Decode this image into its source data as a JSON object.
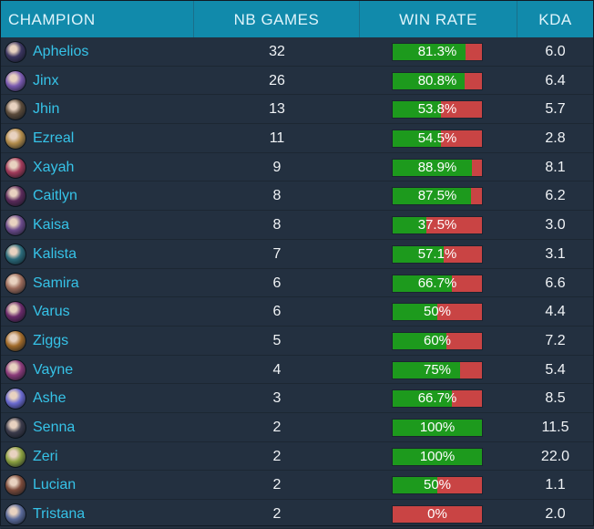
{
  "columns": {
    "champion": "CHAMPION",
    "games": "NB GAMES",
    "winrate": "WIN RATE",
    "kda": "KDA"
  },
  "rows": [
    {
      "champion": "Aphelios",
      "games": "32",
      "winrate_label": "81.3%",
      "winrate": 81.3,
      "kda": "6.0",
      "avatar_color": "#3b3560",
      "avatar_icon": "aphelios-portrait"
    },
    {
      "champion": "Jinx",
      "games": "26",
      "winrate_label": "80.8%",
      "winrate": 80.8,
      "kda": "6.4",
      "avatar_color": "#7a5ab0",
      "avatar_icon": "jinx-portrait"
    },
    {
      "champion": "Jhin",
      "games": "13",
      "winrate_label": "53.8%",
      "winrate": 53.8,
      "kda": "5.7",
      "avatar_color": "#5a4a3a",
      "avatar_icon": "jhin-portrait"
    },
    {
      "champion": "Ezreal",
      "games": "11",
      "winrate_label": "54.5%",
      "winrate": 54.5,
      "kda": "2.8",
      "avatar_color": "#b08a4a",
      "avatar_icon": "ezreal-portrait"
    },
    {
      "champion": "Xayah",
      "games": "9",
      "winrate_label": "88.9%",
      "winrate": 88.9,
      "kda": "8.1",
      "avatar_color": "#a03a5a",
      "avatar_icon": "xayah-portrait"
    },
    {
      "champion": "Caitlyn",
      "games": "8",
      "winrate_label": "87.5%",
      "winrate": 87.5,
      "kda": "6.2",
      "avatar_color": "#5a2a5a",
      "avatar_icon": "caitlyn-portrait"
    },
    {
      "champion": "Kaisa",
      "games": "8",
      "winrate_label": "37.5%",
      "winrate": 37.5,
      "kda": "3.0",
      "avatar_color": "#6a4a8a",
      "avatar_icon": "kaisa-portrait"
    },
    {
      "champion": "Kalista",
      "games": "7",
      "winrate_label": "57.1%",
      "winrate": 57.1,
      "kda": "3.1",
      "avatar_color": "#2a6a7a",
      "avatar_icon": "kalista-portrait"
    },
    {
      "champion": "Samira",
      "games": "6",
      "winrate_label": "66.7%",
      "winrate": 66.7,
      "kda": "6.6",
      "avatar_color": "#9a6a5a",
      "avatar_icon": "samira-portrait"
    },
    {
      "champion": "Varus",
      "games": "6",
      "winrate_label": "50%",
      "winrate": 50,
      "kda": "4.4",
      "avatar_color": "#6a2a6a",
      "avatar_icon": "varus-portrait"
    },
    {
      "champion": "Ziggs",
      "games": "5",
      "winrate_label": "60%",
      "winrate": 60,
      "kda": "7.2",
      "avatar_color": "#a06a2a",
      "avatar_icon": "ziggs-portrait"
    },
    {
      "champion": "Vayne",
      "games": "4",
      "winrate_label": "75%",
      "winrate": 75,
      "kda": "5.4",
      "avatar_color": "#8a3a7a",
      "avatar_icon": "vayne-portrait"
    },
    {
      "champion": "Ashe",
      "games": "3",
      "winrate_label": "66.7%",
      "winrate": 66.7,
      "kda": "8.5",
      "avatar_color": "#6a6ad0",
      "avatar_icon": "ashe-portrait"
    },
    {
      "champion": "Senna",
      "games": "2",
      "winrate_label": "100%",
      "winrate": 100,
      "kda": "11.5",
      "avatar_color": "#3a3a4a",
      "avatar_icon": "senna-portrait"
    },
    {
      "champion": "Zeri",
      "games": "2",
      "winrate_label": "100%",
      "winrate": 100,
      "kda": "22.0",
      "avatar_color": "#8aa040",
      "avatar_icon": "zeri-portrait"
    },
    {
      "champion": "Lucian",
      "games": "2",
      "winrate_label": "50%",
      "winrate": 50,
      "kda": "1.1",
      "avatar_color": "#7a4a3a",
      "avatar_icon": "lucian-portrait"
    },
    {
      "champion": "Tristana",
      "games": "2",
      "winrate_label": "0%",
      "winrate": 0,
      "kda": "2.0",
      "avatar_color": "#5a6a9a",
      "avatar_icon": "tristana-portrait"
    }
  ],
  "colors": {
    "header_bg": "#118aab",
    "row_bg": "#233040",
    "name_color": "#36c3e8",
    "win_color": "#1d9a1d",
    "loss_color": "#c94444"
  }
}
